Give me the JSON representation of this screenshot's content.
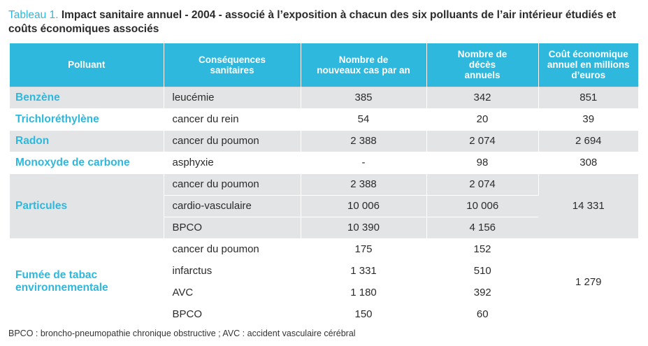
{
  "caption": {
    "number": "Tableau 1.",
    "title": "Impact sanitaire annuel - 2004 - associé à l’exposition à chacun des six polluants de l’air intérieur étudiés et coûts économiques associés"
  },
  "headers": [
    "Polluant",
    "Conséquences sanitaires",
    "Nombre de nouveaux cas par an",
    "Nombre de décès annuels",
    "Coût économique annuel en millions d’euros"
  ],
  "rows": {
    "benzene": {
      "pollutant": "Benzène",
      "consequence": "leucémie",
      "cases": "385",
      "deaths": "342",
      "cost": "851"
    },
    "trichlo": {
      "pollutant": "Trichloréthylène",
      "consequence": "cancer du rein",
      "cases": "54",
      "deaths": "20",
      "cost": "39"
    },
    "radon": {
      "pollutant": "Radon",
      "consequence": "cancer du poumon",
      "cases": "2 388",
      "deaths": "2 074",
      "cost": "2 694"
    },
    "monoxyde": {
      "pollutant": "Monoxyde de carbone",
      "consequence": "asphyxie",
      "cases": "-",
      "deaths": "98",
      "cost": "308"
    },
    "particules": {
      "pollutant": "Particules",
      "cost": "14 331",
      "items": [
        {
          "consequence": "cancer du poumon",
          "cases": "2 388",
          "deaths": "2 074"
        },
        {
          "consequence": "cardio-vasculaire",
          "cases": "10 006",
          "deaths": "10 006"
        },
        {
          "consequence": "BPCO",
          "cases": "10 390",
          "deaths": "4 156"
        }
      ]
    },
    "tabac": {
      "pollutant": "Fumée de tabac environnementale",
      "cost": "1 279",
      "items": [
        {
          "consequence": "cancer du poumon",
          "cases": "175",
          "deaths": "152"
        },
        {
          "consequence": "infarctus",
          "cases": "1 331",
          "deaths": "510"
        },
        {
          "consequence": "AVC",
          "cases": "1 180",
          "deaths": "392"
        },
        {
          "consequence": "BPCO",
          "cases": "150",
          "deaths": "60"
        }
      ]
    }
  },
  "footnote": "BPCO : broncho-pneumopathie chronique obstructive ; AVC : accident vasculaire cérébral"
}
